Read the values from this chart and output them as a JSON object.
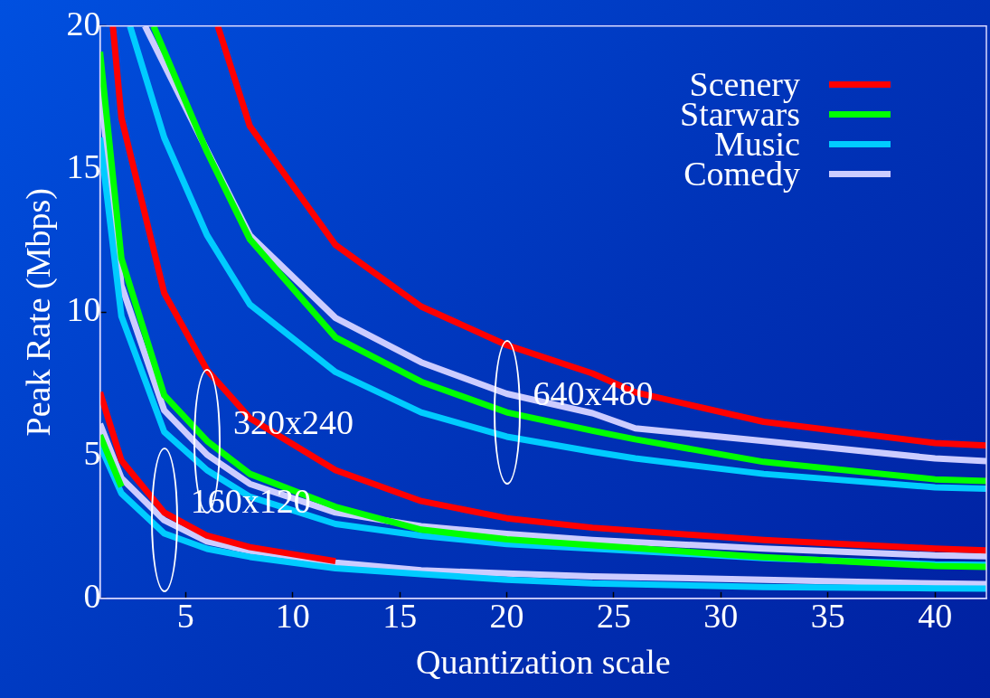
{
  "chart_data": {
    "type": "line",
    "xlabel": "Quantization scale",
    "ylabel": "Peak Rate (Mbps)",
    "xlim": [
      1,
      42.4
    ],
    "xticks": [
      5,
      10,
      15,
      20,
      25,
      30,
      35,
      40
    ],
    "ylim": [
      0,
      20
    ],
    "yticks": [
      0,
      5,
      10,
      15,
      20
    ],
    "legend": "top right",
    "grid": false,
    "marker": "none",
    "line_style": "solid",
    "annotations": [
      {
        "text": "640x480",
        "x": 20,
        "y": 6.5
      },
      {
        "text": "320x240",
        "x": 6,
        "y": 5.5
      },
      {
        "text": "160x120",
        "x": 4,
        "y": 2.73
      }
    ],
    "series": [
      {
        "name": "Scenery",
        "color": "#ff0000",
        "x": [
          6.5,
          8,
          12,
          16,
          20,
          24,
          26,
          32,
          40,
          42.4
        ],
        "values": [
          20,
          16.5,
          12.35,
          10.2,
          8.85,
          7.86,
          7.2,
          6.17,
          5.43,
          5.34
        ]
      },
      {
        "name": "Starwars",
        "color": "#00ff00",
        "x": [
          3.5,
          6,
          8,
          12,
          16,
          20,
          24,
          26,
          32,
          40,
          42.4
        ],
        "values": [
          20,
          15.6,
          12.55,
          9.12,
          7.57,
          6.5,
          5.86,
          5.56,
          4.77,
          4.16,
          4.1
        ]
      },
      {
        "name": "Music",
        "color": "#00ccff",
        "x": [
          2.4,
          4,
          6,
          8,
          12,
          16,
          20,
          24,
          26,
          32,
          40,
          42.4
        ],
        "values": [
          20,
          16.1,
          12.69,
          10.27,
          7.91,
          6.5,
          5.65,
          5.13,
          4.89,
          4.35,
          3.88,
          3.83
        ]
      },
      {
        "name": "Comedy",
        "color": "#ccccff",
        "x": [
          3.1,
          6,
          8,
          12,
          16,
          20,
          24,
          26,
          32,
          40,
          42.4
        ],
        "values": [
          20,
          15.65,
          12.69,
          9.8,
          8.25,
          7.15,
          6.47,
          5.94,
          5.5,
          4.89,
          4.8
        ]
      },
      {
        "color": "#ff0000",
        "x": [
          1.6,
          2,
          4,
          6,
          8,
          12,
          16,
          20,
          24,
          32,
          40,
          42.4
        ],
        "values": [
          20,
          16.8,
          10.67,
          7.98,
          6.3,
          4.48,
          3.4,
          2.8,
          2.47,
          2.04,
          1.74,
          1.68
        ]
      },
      {
        "color": "#00ff00",
        "x": [
          1,
          2,
          4,
          6,
          8,
          12,
          16,
          20,
          24,
          32,
          40,
          42.4
        ],
        "values": [
          19.1,
          11.88,
          7.1,
          5.5,
          4.35,
          3.2,
          2.4,
          2.06,
          1.86,
          1.44,
          1.13,
          1.1
        ]
      },
      {
        "color": "#00ccff",
        "x": [
          1,
          2,
          4,
          6,
          8,
          12,
          16,
          20,
          24,
          32,
          40,
          42.4
        ],
        "values": [
          16.1,
          9.86,
          5.82,
          4.48,
          3.55,
          2.6,
          2.19,
          1.9,
          1.74,
          1.41,
          1.19,
          1.17
        ]
      },
      {
        "color": "#ccccff",
        "x": [
          1,
          2,
          4,
          6,
          8,
          12,
          16,
          20,
          24,
          32,
          40,
          42.4
        ],
        "values": [
          17.9,
          10.94,
          6.57,
          5.02,
          4.0,
          3.0,
          2.52,
          2.25,
          2.04,
          1.74,
          1.5,
          1.47
        ]
      },
      {
        "color": "#ff0000",
        "x": [
          1,
          2,
          4,
          6,
          8,
          12
        ],
        "values": [
          7.2,
          4.82,
          3.0,
          2.19,
          1.79,
          1.3
        ]
      },
      {
        "color": "#00ff00",
        "x": [
          1,
          2
        ],
        "values": [
          5.7,
          3.9
        ]
      },
      {
        "color": "#00ccff",
        "x": [
          1,
          2,
          4,
          6,
          8,
          12,
          16,
          20,
          24,
          32,
          40,
          42.4
        ],
        "values": [
          5.35,
          3.67,
          2.27,
          1.73,
          1.45,
          1.05,
          0.85,
          0.65,
          0.52,
          0.4,
          0.35,
          0.34
        ]
      },
      {
        "color": "#ccccff",
        "x": [
          1,
          2,
          4,
          6,
          8,
          12,
          16,
          20,
          24,
          32,
          40,
          42.4
        ],
        "values": [
          6.1,
          4.2,
          2.73,
          1.99,
          1.66,
          1.25,
          0.98,
          0.87,
          0.77,
          0.65,
          0.52,
          0.5
        ]
      }
    ]
  }
}
